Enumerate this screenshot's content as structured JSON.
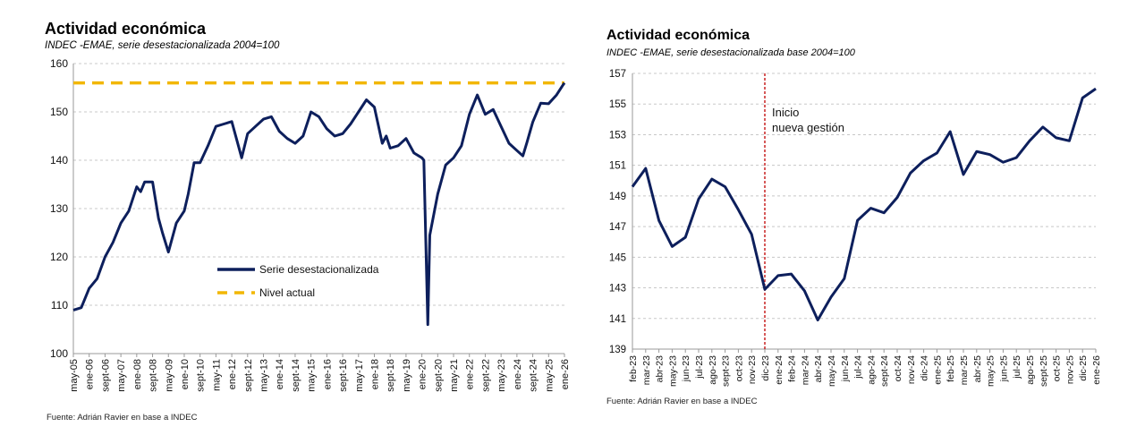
{
  "chart_data": [
    {
      "type": "line",
      "title": "Actividad económica",
      "subtitle": "INDEC -EMAE, serie desestacionalizada 2004=100",
      "source": "Fuente: Adrián Ravier en base a INDEC",
      "ylim": [
        100,
        160
      ],
      "yticks": [
        100,
        110,
        120,
        130,
        140,
        150,
        160
      ],
      "grid": true,
      "legend_position": "center",
      "xtick_labels": [
        "may-05",
        "ene-06",
        "sept-06",
        "may-07",
        "ene-08",
        "sept-08",
        "may-09",
        "ene-10",
        "sept-10",
        "may-11",
        "ene-12",
        "sept-12",
        "may-13",
        "ene-14",
        "sept-14",
        "may-15",
        "ene-16",
        "sept-16",
        "may-17",
        "ene-18",
        "sept-18",
        "may-19",
        "ene-20",
        "sept-20",
        "may-21",
        "ene-22",
        "sept-22",
        "may-23",
        "ene-24",
        "sept-24",
        "may-25",
        "ene-26"
      ],
      "series": [
        {
          "name": "Serie desestacionalizada",
          "color": "#0d1f5c",
          "x": [
            "2005-05",
            "2005-09",
            "2006-01",
            "2006-05",
            "2006-09",
            "2007-01",
            "2007-05",
            "2007-09",
            "2008-01",
            "2008-03",
            "2008-05",
            "2008-09",
            "2008-12",
            "2009-02",
            "2009-05",
            "2009-09",
            "2010-01",
            "2010-03",
            "2010-06",
            "2010-09",
            "2011-01",
            "2011-05",
            "2011-09",
            "2012-01",
            "2012-03",
            "2012-06",
            "2012-09",
            "2013-01",
            "2013-05",
            "2013-09",
            "2014-01",
            "2014-05",
            "2014-09",
            "2015-01",
            "2015-05",
            "2015-09",
            "2016-01",
            "2016-05",
            "2016-09",
            "2017-01",
            "2017-05",
            "2017-09",
            "2018-01",
            "2018-05",
            "2018-07",
            "2018-09",
            "2019-01",
            "2019-05",
            "2019-09",
            "2020-01",
            "2020-02",
            "2020-04",
            "2020-05",
            "2020-09",
            "2021-01",
            "2021-05",
            "2021-09",
            "2022-01",
            "2022-05",
            "2022-09",
            "2023-01",
            "2023-05",
            "2023-09",
            "2024-01",
            "2024-04",
            "2024-06",
            "2024-09",
            "2025-01",
            "2025-05",
            "2025-09",
            "2025-12",
            "2026-01"
          ],
          "values": [
            109,
            109.5,
            113.5,
            115.5,
            120,
            123,
            127,
            129.5,
            134.5,
            133.5,
            135.5,
            135.5,
            128,
            125,
            121,
            127,
            129.5,
            133,
            139.5,
            139.5,
            143,
            147,
            147.5,
            148,
            145,
            140.5,
            145.5,
            147,
            148.5,
            149,
            146,
            144.5,
            143.5,
            145,
            150,
            149,
            146.5,
            145,
            145.5,
            147.5,
            150,
            152.5,
            151,
            143.5,
            145,
            142.5,
            143,
            144.5,
            141.5,
            140.5,
            140,
            106,
            124.5,
            133,
            139,
            140.5,
            143,
            149.5,
            153.5,
            149.5,
            150.5,
            147,
            143.5,
            142,
            140.9,
            143.6,
            147.9,
            151.8,
            151.7,
            153.5,
            155.4,
            156
          ]
        },
        {
          "name": "Nivel actual",
          "color": "#f2b705",
          "value": 156,
          "style": "dashed"
        }
      ]
    },
    {
      "type": "line",
      "title": "Actividad económica",
      "subtitle": "INDEC -EMAE, serie desestacionalizada base 2004=100",
      "source": "Fuente: Adrián Ravier en base a INDEC",
      "ylim": [
        139,
        157
      ],
      "yticks": [
        139,
        141,
        143,
        145,
        147,
        149,
        151,
        153,
        155,
        157
      ],
      "grid": true,
      "categories": [
        "feb-23",
        "mar-23",
        "abr-23",
        "may-23",
        "jun-23",
        "jul-23",
        "ago-23",
        "sept-23",
        "oct-23",
        "nov-23",
        "dic-23",
        "ene-24",
        "feb-24",
        "mar-24",
        "abr-24",
        "may-24",
        "jun-24",
        "jul-24",
        "ago-24",
        "sept-24",
        "oct-24",
        "nov-24",
        "dic-24",
        "ene-25",
        "feb-25",
        "mar-25",
        "abr-25",
        "may-25",
        "jun-25",
        "jul-25",
        "ago-25",
        "sept-25",
        "oct-25",
        "nov-25",
        "dic-25",
        "ene-26"
      ],
      "series": [
        {
          "color": "#0d1f5c",
          "values": [
            149.6,
            150.8,
            147.4,
            145.7,
            146.3,
            148.8,
            150.1,
            149.6,
            148.1,
            146.5,
            142.9,
            143.8,
            143.9,
            142.8,
            140.9,
            142.4,
            143.6,
            147.4,
            148.2,
            147.9,
            148.9,
            150.5,
            151.3,
            151.8,
            153.2,
            150.4,
            151.9,
            151.7,
            151.2,
            151.5,
            152.6,
            153.5,
            152.8,
            152.6,
            155.4,
            156.0
          ]
        }
      ],
      "annotation": {
        "text_line1": "Inicio",
        "text_line2": "nueva gestión",
        "at": "dic-23",
        "color": "#c00000"
      }
    }
  ]
}
